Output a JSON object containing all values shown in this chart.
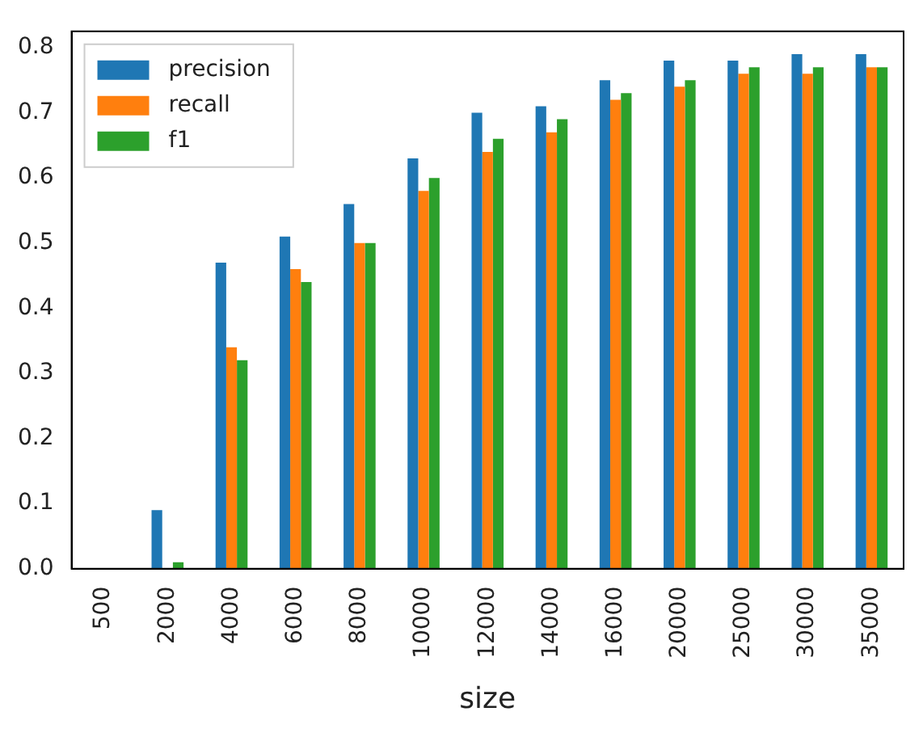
{
  "chart_data": {
    "type": "bar",
    "xlabel": "size",
    "categories": [
      "500",
      "2000",
      "4000",
      "6000",
      "8000",
      "10000",
      "12000",
      "14000",
      "16000",
      "20000",
      "25000",
      "30000",
      "35000"
    ],
    "series": [
      {
        "name": "precision",
        "color": "#1f77b4",
        "values": [
          0,
          0.09,
          0.47,
          0.51,
          0.56,
          0.63,
          0.7,
          0.71,
          0.75,
          0.78,
          0.78,
          0.79,
          0.79
        ]
      },
      {
        "name": "recall",
        "color": "#ff7f0e",
        "values": [
          0,
          0,
          0.34,
          0.46,
          0.5,
          0.58,
          0.64,
          0.67,
          0.72,
          0.74,
          0.76,
          0.76,
          0.77
        ]
      },
      {
        "name": "f1",
        "color": "#2ca02c",
        "values": [
          0,
          0.01,
          0.32,
          0.44,
          0.5,
          0.6,
          0.66,
          0.69,
          0.73,
          0.75,
          0.77,
          0.77,
          0.77
        ]
      }
    ],
    "ylim": [
      0,
      0.825
    ],
    "yticks": [
      {
        "value": 0,
        "label": "0.0"
      },
      0.1,
      0.2,
      0.3,
      0.4,
      0.5,
      0.6,
      0.7,
      0.8
    ],
    "grid": false,
    "legend": "top left"
  }
}
